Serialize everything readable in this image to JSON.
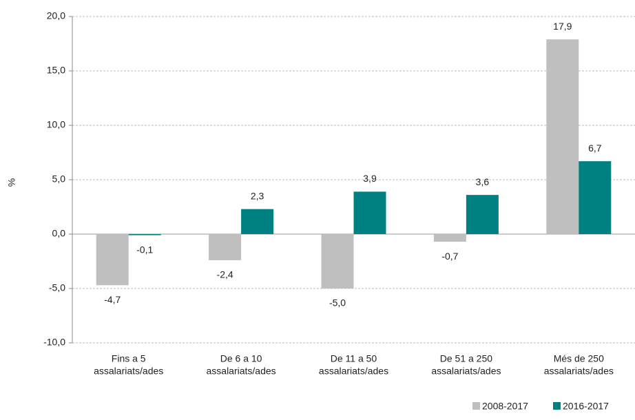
{
  "chart_data": {
    "type": "bar",
    "y_label": "%",
    "categories": [
      [
        "Fins a 5",
        "assalariats/ades"
      ],
      [
        "De 6 a 10",
        "assalariats/ades"
      ],
      [
        "De 11 a 50",
        "assalariats/ades"
      ],
      [
        "De 51 a 250",
        "assalariats/ades"
      ],
      [
        "Més de 250",
        "assalariats/ades"
      ]
    ],
    "series": [
      {
        "name": "2008-2017",
        "color": "#bfbfbf",
        "values": [
          -4.7,
          -2.4,
          -5.0,
          -0.7,
          17.9
        ],
        "value_labels": [
          "-4,7",
          "-2,4",
          "-5,0",
          "-0,7",
          "17,9"
        ]
      },
      {
        "name": "2016-2017",
        "color": "#008080",
        "values": [
          -0.1,
          2.3,
          3.9,
          3.6,
          6.7
        ],
        "value_labels": [
          "-0,1",
          "2,3",
          "3,9",
          "3,6",
          "6,7"
        ]
      }
    ],
    "ylim": [
      -10,
      20
    ],
    "yticks": [
      {
        "value": -10,
        "label": "-10,0"
      },
      {
        "value": -5,
        "label": "-5,0"
      },
      {
        "value": 0,
        "label": "0,0"
      },
      {
        "value": 5,
        "label": "5,0"
      },
      {
        "value": 10,
        "label": "10,0"
      },
      {
        "value": 15,
        "label": "15,0"
      },
      {
        "value": 20,
        "label": "20,0"
      }
    ],
    "grid": true,
    "legend": "bottom-right"
  }
}
